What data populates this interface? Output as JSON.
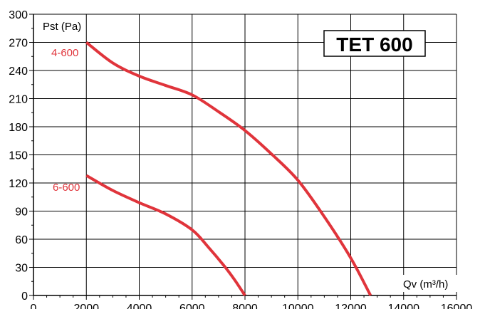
{
  "chart_data": {
    "type": "line",
    "title": "TET 600",
    "ylabel": "Pst (Pa)",
    "xlabel": "Qv (m³/h)",
    "xlim": [
      0,
      16000
    ],
    "ylim": [
      0,
      300
    ],
    "xticks": [
      0,
      2000,
      4000,
      6000,
      8000,
      10000,
      12000,
      14000,
      16000
    ],
    "yticks": [
      0,
      30,
      60,
      90,
      120,
      150,
      180,
      210,
      240,
      270,
      300
    ],
    "grid": true,
    "series_color": "#e0343b",
    "series": [
      {
        "name": "4-600",
        "x": [
          2000,
          3000,
          4000,
          5000,
          6000,
          7000,
          8000,
          9000,
          10000,
          11000,
          12000,
          12750
        ],
        "y": [
          270,
          248,
          234,
          224,
          214,
          196,
          176,
          151,
          123,
          84,
          40,
          0
        ]
      },
      {
        "name": "6-600",
        "x": [
          2000,
          3000,
          4000,
          5000,
          6000,
          6600,
          7200,
          7600,
          8000
        ],
        "y": [
          128,
          112,
          99,
          87,
          70,
          52,
          32,
          17,
          0
        ]
      }
    ]
  }
}
